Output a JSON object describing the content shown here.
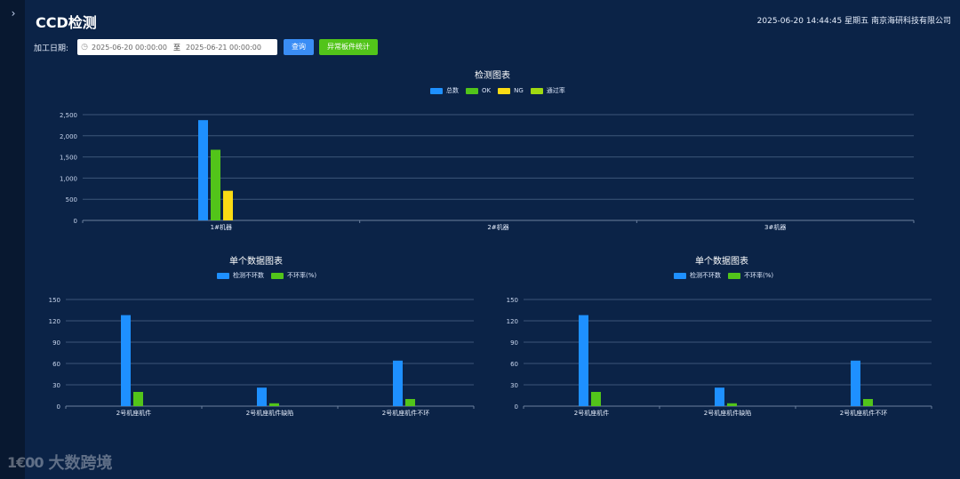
{
  "app": {
    "title": "CCD检测",
    "datetime": "2025-06-20 14:44:45 星期五",
    "company": "南京海研科技有限公司"
  },
  "filter": {
    "label": "加工日期:",
    "start": "2025-06-20 00:00:00",
    "separator": "至",
    "end": "2025-06-21 00:00:00",
    "query_label": "查询",
    "stats_label": "异常板件统计"
  },
  "colors": {
    "blue": "#1e90ff",
    "green": "#52c41a",
    "yellow": "#fadb14",
    "lime": "#a0d911"
  },
  "chart_data": [
    {
      "id": "main",
      "type": "bar",
      "title": "检测图表",
      "categories": [
        "1#机器",
        "2#机器",
        "3#机器"
      ],
      "series": [
        {
          "name": "总数",
          "values": [
            2370,
            0,
            0
          ],
          "color": "#1e90ff"
        },
        {
          "name": "OK",
          "values": [
            1670,
            0,
            0
          ],
          "color": "#52c41a"
        },
        {
          "name": "NG",
          "values": [
            700,
            0,
            0
          ],
          "color": "#fadb14"
        },
        {
          "name": "通过率",
          "values": [
            0,
            0,
            0
          ],
          "color": "#a0d911"
        }
      ],
      "yticks": [
        0,
        500,
        1000,
        1500,
        2000,
        2500
      ],
      "ytick_labels": [
        "0",
        "500",
        "1,000",
        "1,500",
        "2,000",
        "2,500"
      ],
      "ylim": [
        0,
        2500
      ],
      "grid": true,
      "legend": "top-center"
    },
    {
      "id": "left",
      "type": "bar",
      "title": "单个数据图表",
      "categories": [
        "2号机座机件",
        "2号机座机件缺陷",
        "2号机座机件不环"
      ],
      "series": [
        {
          "name": "检测不环数",
          "values": [
            128,
            26,
            64
          ],
          "color": "#1e90ff"
        },
        {
          "name": "不环率(%)",
          "values": [
            20,
            4,
            10
          ],
          "color": "#52c41a"
        }
      ],
      "yticks": [
        0,
        30,
        60,
        90,
        120,
        150
      ],
      "ytick_labels": [
        "0",
        "30",
        "60",
        "90",
        "120",
        "150"
      ],
      "ylim": [
        0,
        150
      ],
      "grid": true,
      "legend": "top-center"
    },
    {
      "id": "right",
      "type": "bar",
      "title": "单个数据图表",
      "categories": [
        "2号机座机件",
        "2号机座机件缺陷",
        "2号机座机件不环"
      ],
      "series": [
        {
          "name": "检测不环数",
          "values": [
            128,
            26,
            64
          ],
          "color": "#1e90ff"
        },
        {
          "name": "不环率(%)",
          "values": [
            20,
            4,
            10
          ],
          "color": "#52c41a"
        }
      ],
      "yticks": [
        0,
        30,
        60,
        90,
        120,
        150
      ],
      "ytick_labels": [
        "0",
        "30",
        "60",
        "90",
        "120",
        "150"
      ],
      "ylim": [
        0,
        150
      ],
      "grid": true,
      "legend": "top-center"
    }
  ],
  "watermark": {
    "logo": "1€00",
    "text": "大数跨境"
  }
}
